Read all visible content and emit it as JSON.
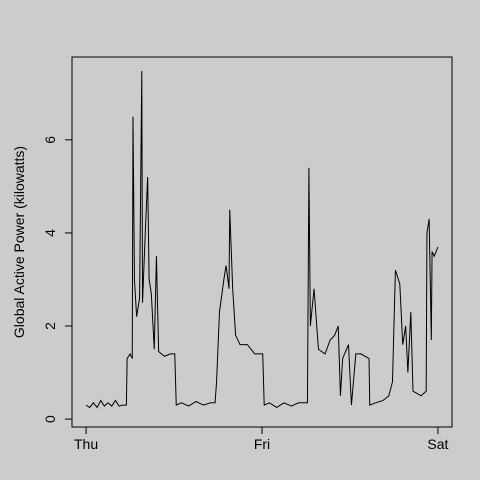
{
  "chart_data": {
    "type": "line",
    "y_label": "Global Active Power (kilowatts)",
    "x": [
      0,
      0.5,
      1,
      1.5,
      2,
      2.5,
      3,
      3.5,
      4,
      4.5,
      5,
      5.5,
      5.6,
      6,
      6.3,
      6.4,
      6.6,
      6.9,
      7.3,
      7.6,
      7.7,
      8.1,
      8.4,
      8.6,
      8.9,
      9.3,
      9.6,
      9.9,
      10.7,
      11.5,
      12.1,
      12.3,
      13,
      14,
      15,
      16,
      17,
      17.6,
      17.8,
      18.2,
      18.8,
      19.1,
      19.5,
      19.6,
      20,
      20.4,
      21,
      22,
      23,
      24.1,
      24.3,
      25,
      26,
      27,
      28,
      29,
      30.2,
      30.4,
      30.6,
      31.1,
      31.7,
      32.6,
      33.3,
      33.9,
      34.4,
      34.7,
      35,
      35.8,
      36.2,
      36.8,
      37.5,
      38.6,
      38.7,
      39.5,
      40.5,
      41.3,
      41.8,
      42.2,
      42.8,
      43.2,
      43.6,
      43.9,
      44.3,
      44.6,
      45.7,
      46.4,
      46.5,
      46.8,
      47.1,
      47.2,
      47.5,
      48
    ],
    "values": [
      0.3,
      0.25,
      0.35,
      0.25,
      0.4,
      0.28,
      0.35,
      0.28,
      0.4,
      0.28,
      0.3,
      0.3,
      1.3,
      1.4,
      1.3,
      6.5,
      3.0,
      2.2,
      2.6,
      7.48,
      2.5,
      4.1,
      5.2,
      3.0,
      2.7,
      1.5,
      3.5,
      1.45,
      1.35,
      1.4,
      1.4,
      0.3,
      0.35,
      0.28,
      0.38,
      0.3,
      0.35,
      0.35,
      0.8,
      2.3,
      3.0,
      3.3,
      2.8,
      4.5,
      2.8,
      1.8,
      1.6,
      1.6,
      1.4,
      1.4,
      0.3,
      0.35,
      0.25,
      0.35,
      0.28,
      0.35,
      0.35,
      5.4,
      2.0,
      2.8,
      1.5,
      1.4,
      1.7,
      1.8,
      2.0,
      0.5,
      1.3,
      1.6,
      0.3,
      1.4,
      1.4,
      1.3,
      0.3,
      0.35,
      0.4,
      0.5,
      0.8,
      3.2,
      2.9,
      1.6,
      2.0,
      1.0,
      2.3,
      0.6,
      0.5,
      0.6,
      4.0,
      4.3,
      1.7,
      3.6,
      3.5,
      3.7
    ],
    "color": "#000000",
    "xlim": [
      -1.92,
      49.92
    ],
    "xticks": [
      {
        "value": 0,
        "label": "Thu"
      },
      {
        "value": 24,
        "label": "Fri"
      },
      {
        "value": 48,
        "label": "Sat"
      }
    ],
    "ylim": [
      -0.17,
      7.78
    ],
    "yticks": [
      0,
      2,
      4,
      6
    ]
  }
}
